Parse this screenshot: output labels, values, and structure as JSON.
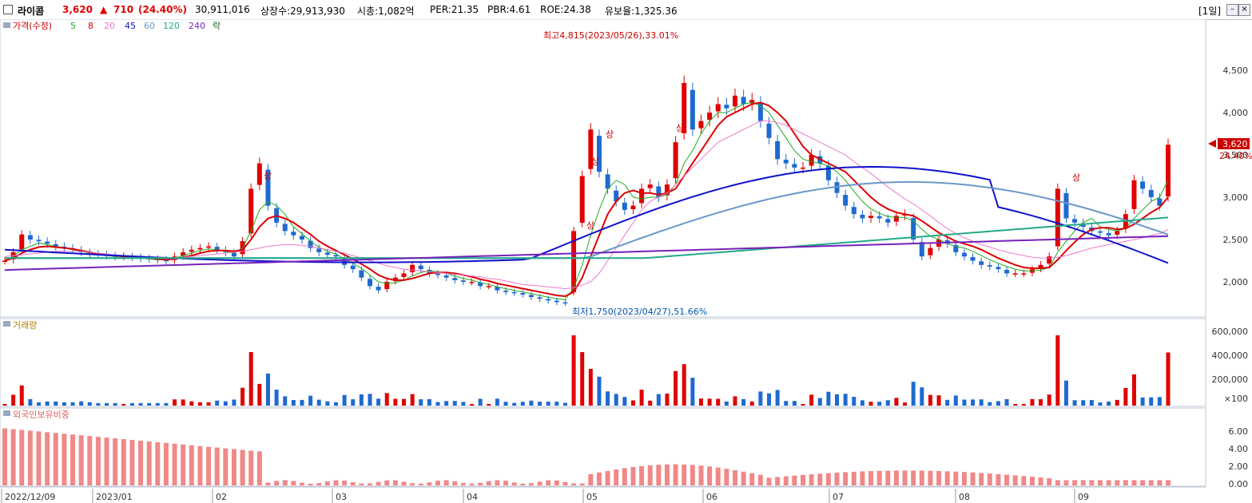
{
  "header": {
    "name": "라이콤",
    "price": "3,620",
    "change_arrow": "▲",
    "change": "710",
    "change_pct": "(24.40%)",
    "volume": "30,911,016",
    "shares": "상장수:29,913,930",
    "mcap": "시총:1,082억",
    "per": "PER:21.35",
    "pbr": "PBR:4.61",
    "roe": "ROE:24.38",
    "float": "유보율:1,325.36",
    "period": "[1일]"
  },
  "legend": {
    "price_label": "가격(수정)",
    "ma": [
      {
        "label": "5",
        "color": "#22aa22"
      },
      {
        "label": "8",
        "color": "#dd0000"
      },
      {
        "label": "20",
        "color": "#ee77cc"
      },
      {
        "label": "45",
        "color": "#1111cc"
      },
      {
        "label": "60",
        "color": "#6a98c8"
      },
      {
        "label": "120",
        "color": "#22aa88"
      },
      {
        "label": "240",
        "color": "#7722bb"
      }
    ],
    "rak": "락",
    "volume_label": "거래량",
    "foreign_label": "외국인보유비중"
  },
  "annotations": {
    "high": "최고4,815(2023/05/26),33.01%",
    "low": "최저1,750(2023/04/27),51.66%",
    "limit_up": "상"
  },
  "last_price_tag": {
    "price": "3,620",
    "pct": "24.40%"
  },
  "chart_data": {
    "type": "candlestick",
    "x_labels": [
      "2022/12/09",
      "2023/01",
      "02",
      "03",
      "04",
      "05",
      "06",
      "07",
      "08",
      "09"
    ],
    "price_ticks": [
      "2,000",
      "2,500",
      "3,000",
      "3,500",
      "4,000",
      "4,500"
    ],
    "volume_ticks": [
      "600,000",
      "400,000",
      "200,000",
      "×100"
    ],
    "foreign_ticks": [
      "6.00",
      "4.00",
      "2.00",
      "0.00"
    ],
    "price_series": [
      2250,
      2350,
      2560,
      2500,
      2480,
      2450,
      2420,
      2400,
      2380,
      2350,
      2330,
      2320,
      2310,
      2300,
      2300,
      2290,
      2280,
      2270,
      2260,
      2250,
      2300,
      2350,
      2380,
      2400,
      2420,
      2380,
      2350,
      2300,
      2480,
      3100,
      3400,
      2900,
      2700,
      2600,
      2550,
      2500,
      2400,
      2350,
      2320,
      2300,
      2200,
      2150,
      2050,
      1950,
      1900,
      2000,
      2050,
      2100,
      2200,
      2150,
      2100,
      2080,
      2050,
      2020,
      2000,
      2000,
      1950,
      1950,
      1900,
      1880,
      1870,
      1850,
      1820,
      1800,
      1780,
      1760,
      1750,
      2600,
      3250,
      3800,
      3300,
      3100,
      2950,
      2850,
      2900,
      3100,
      3150,
      3000,
      3150,
      3650,
      4350,
      3800,
      3900,
      4000,
      4100,
      4050,
      4200,
      4100,
      4150,
      3900,
      3700,
      3450,
      3400,
      3350,
      3350,
      3500,
      3400,
      3200,
      3050,
      2900,
      2800,
      2750,
      2780,
      2750,
      2700,
      2780,
      2800,
      2500,
      2300,
      2400,
      2500,
      2450,
      2350,
      2300,
      2250,
      2200,
      2180,
      2150,
      2100,
      2100,
      2100,
      2150,
      2200,
      2300,
      3100,
      2750,
      2700,
      2650,
      2600,
      2580,
      2550,
      2600,
      2800,
      3200,
      3100,
      3000,
      2900,
      3620
    ],
    "ma": {
      "5": [
        2250,
        2300,
        2380,
        2420,
        2460,
        2440,
        2420,
        2400,
        2380,
        2360,
        2340,
        2320,
        2310,
        2300,
        2300,
        2290,
        2280,
        2270,
        2260,
        2260,
        2280,
        2310,
        2340,
        2370,
        2390,
        2380,
        2360,
        2340,
        2400,
        2600,
        2850,
        2950,
        2900,
        2800,
        2650,
        2570,
        2480,
        2410,
        2360,
        2330,
        2270,
        2220,
        2160,
        2080,
        2000,
        1980,
        1990,
        2020,
        2070,
        2110,
        2130,
        2120,
        2100,
        2070,
        2040,
        2020,
        1990,
        1970,
        1940,
        1920,
        1900,
        1880,
        1860,
        1840,
        1820,
        1800,
        1790,
        1930,
        2200,
        2550,
        2850,
        3100,
        3200,
        3150,
        3000,
        2980,
        3000,
        3000,
        3030,
        3150,
        3400,
        3550,
        3750,
        3900,
        4000,
        4000,
        4050,
        4100,
        4120,
        4080,
        4000,
        3850,
        3700,
        3550,
        3450,
        3420,
        3400,
        3370,
        3300,
        3200,
        3070,
        2950,
        2860,
        2810,
        2770,
        2760,
        2760,
        2720,
        2620,
        2540,
        2500,
        2450,
        2420,
        2400,
        2360,
        2310,
        2260,
        2220,
        2180,
        2150,
        2130,
        2130,
        2140,
        2170,
        2350,
        2480,
        2600,
        2700,
        2750,
        2650,
        2620,
        2600,
        2630,
        2750,
        2850,
        2950,
        3000,
        3200
      ],
      "8": [
        2250,
        2280,
        2340,
        2380,
        2410,
        2420,
        2410,
        2400,
        2390,
        2370,
        2350,
        2330,
        2320,
        2310,
        2300,
        2300,
        2290,
        2280,
        2270,
        2260,
        2270,
        2290,
        2310,
        2340,
        2360,
        2370,
        2370,
        2360,
        2380,
        2500,
        2650,
        2750,
        2780,
        2750,
        2700,
        2630,
        2560,
        2480,
        2420,
        2370,
        2320,
        2270,
        2210,
        2150,
        2080,
        2040,
        2020,
        2020,
        2040,
        2070,
        2100,
        2110,
        2110,
        2100,
        2080,
        2060,
        2030,
        2010,
        1980,
        1960,
        1940,
        1920,
        1900,
        1880,
        1860,
        1840,
        1830,
        1880,
        2050,
        2300,
        2550,
        2800,
        2950,
        3050,
        3080,
        3050,
        3050,
        3030,
        3050,
        3100,
        3250,
        3400,
        3550,
        3700,
        3850,
        3950,
        4000,
        4050,
        4100,
        4120,
        4080,
        4000,
        3900,
        3750,
        3600,
        3500,
        3450,
        3400,
        3350,
        3300,
        3200,
        3100,
        3000,
        2920,
        2860,
        2820,
        2800,
        2780,
        2720,
        2650,
        2580,
        2530,
        2480,
        2450,
        2420,
        2380,
        2330,
        2280,
        2240,
        2200,
        2170,
        2160,
        2160,
        2170,
        2260,
        2370,
        2470,
        2560,
        2620,
        2640,
        2640,
        2620,
        2630,
        2680,
        2750,
        2820,
        2880,
        3000
      ],
      "20": [
        2300,
        2310,
        2320,
        2330,
        2340,
        2350,
        2360,
        2360,
        2360,
        2360,
        2350,
        2340,
        2330,
        2320,
        2310,
        2300,
        2300,
        2290,
        2290,
        2280,
        2280,
        2290,
        2300,
        2310,
        2320,
        2330,
        2340,
        2350,
        2360,
        2380,
        2400,
        2420,
        2430,
        2440,
        2440,
        2430,
        2420,
        2400,
        2380,
        2360,
        2340,
        2310,
        2280,
        2250,
        2220,
        2190,
        2170,
        2150,
        2140,
        2130,
        2120,
        2110,
        2100,
        2090,
        2080,
        2070,
        2060,
        2040,
        2030,
        2010,
        1990,
        1970,
        1960,
        1950,
        1940,
        1930,
        1920,
        1930,
        1960,
        2000,
        2100,
        2250,
        2400,
        2550,
        2700,
        2850,
        2950,
        3000,
        3050,
        3150,
        3250,
        3350,
        3450,
        3550,
        3650,
        3700,
        3750,
        3800,
        3850,
        3900,
        3900,
        3880,
        3850,
        3800,
        3750,
        3700,
        3650,
        3600,
        3550,
        3500,
        3420,
        3350,
        3280,
        3200,
        3120,
        3050,
        2980,
        2920,
        2850,
        2780,
        2700,
        2630,
        2570,
        2520,
        2480,
        2440,
        2410,
        2380,
        2350,
        2330,
        2310,
        2290,
        2280,
        2280,
        2290,
        2310,
        2340,
        2370,
        2400,
        2420,
        2440,
        2460,
        2480,
        2500,
        2520,
        2550,
        2570,
        2620
      ]
    }
  }
}
